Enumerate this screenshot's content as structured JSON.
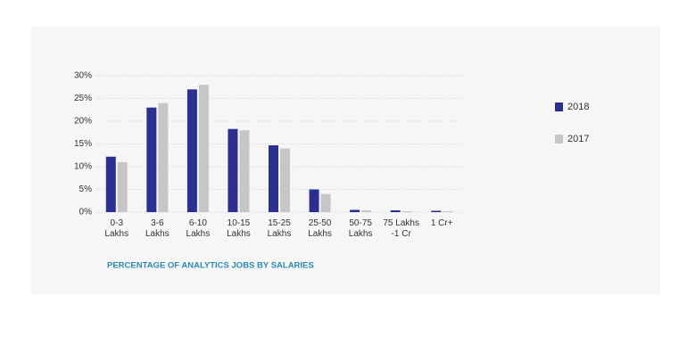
{
  "chart_data": {
    "type": "bar",
    "caption": "PERCENTAGE OF ANALYTICS JOBS BY SALARIES",
    "categories": [
      "0-3\nLakhs",
      "3-6\nLakhs",
      "6-10\nLakhs",
      "10-15\nLakhs",
      "15-25\nLakhs",
      "25-50\nLakhs",
      "50-75\nLakhs",
      "75 Lakhs\n-1 Cr",
      "1 Cr+"
    ],
    "series": [
      {
        "name": "2018",
        "color": "#2b2f8f",
        "values": [
          12.2,
          23,
          27,
          18.3,
          14.7,
          5,
          0.5,
          0.4,
          0.3
        ]
      },
      {
        "name": "2017",
        "color": "#c6c6c8",
        "values": [
          11,
          24,
          28,
          18,
          14,
          4,
          0.4,
          0.2,
          0.2
        ]
      }
    ],
    "ylim": [
      0,
      30
    ],
    "yticks": [
      {
        "value": 0,
        "label": "0%"
      },
      {
        "value": 5,
        "label": "5%"
      },
      {
        "value": 10,
        "label": "10%"
      },
      {
        "value": 15,
        "label": "15%"
      },
      {
        "value": 20,
        "label": "20%"
      },
      {
        "value": 25,
        "label": "25%"
      },
      {
        "value": 30,
        "label": "30%"
      }
    ],
    "grid": true,
    "legend": "right"
  }
}
